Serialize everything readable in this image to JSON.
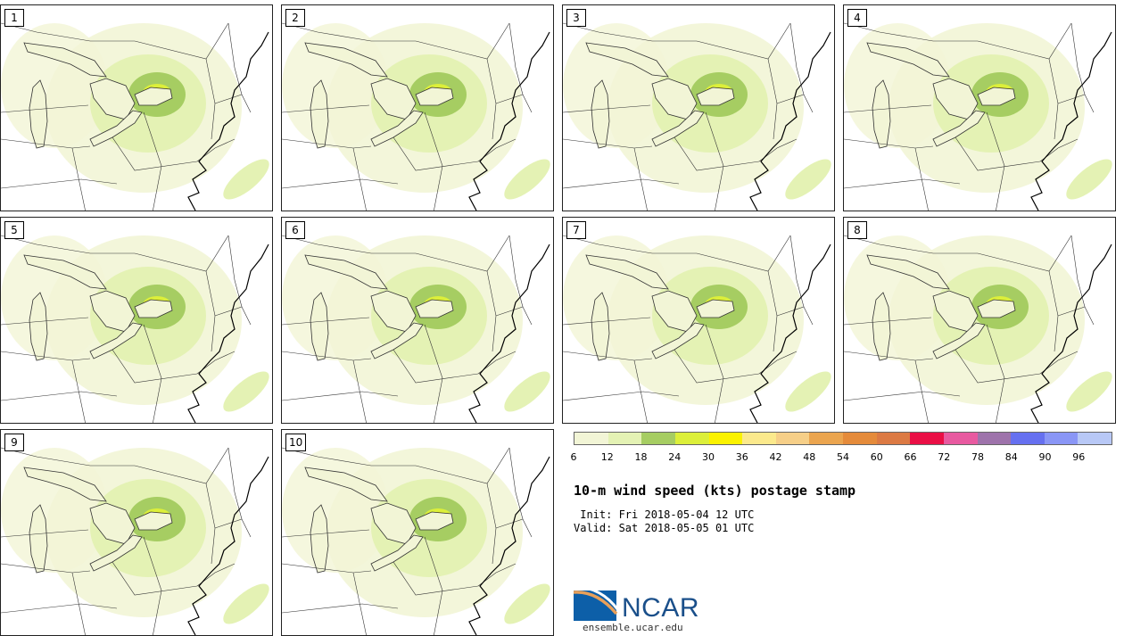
{
  "members": [
    {
      "label": "1"
    },
    {
      "label": "2"
    },
    {
      "label": "3"
    },
    {
      "label": "4"
    },
    {
      "label": "5"
    },
    {
      "label": "6"
    },
    {
      "label": "7"
    },
    {
      "label": "8"
    },
    {
      "label": "9"
    },
    {
      "label": "10"
    }
  ],
  "colorbar": {
    "colors": [
      "#f2f5d6",
      "#e4f2b4",
      "#a6cd62",
      "#dcef3a",
      "#fbf200",
      "#fbe98c",
      "#f6cf88",
      "#eba54f",
      "#e58b3b",
      "#dc7a44",
      "#ea0f45",
      "#e85aa0",
      "#9e73ab",
      "#6670f0",
      "#8a96f6",
      "#b8c8f6"
    ],
    "ticks": [
      "6",
      "12",
      "18",
      "24",
      "30",
      "36",
      "42",
      "48",
      "54",
      "60",
      "66",
      "72",
      "78",
      "84",
      "90",
      "96"
    ]
  },
  "title": "10-m wind speed (kts) postage stamp",
  "init": " Init: Fri 2018-05-04 12 UTC",
  "valid": "Valid: Sat 2018-05-05 01 UTC",
  "logo": {
    "text": "NCAR",
    "colors": {
      "blue": "#0d5fa8",
      "orange": "#e9a05a"
    }
  },
  "site": "ensemble.ucar.edu"
}
